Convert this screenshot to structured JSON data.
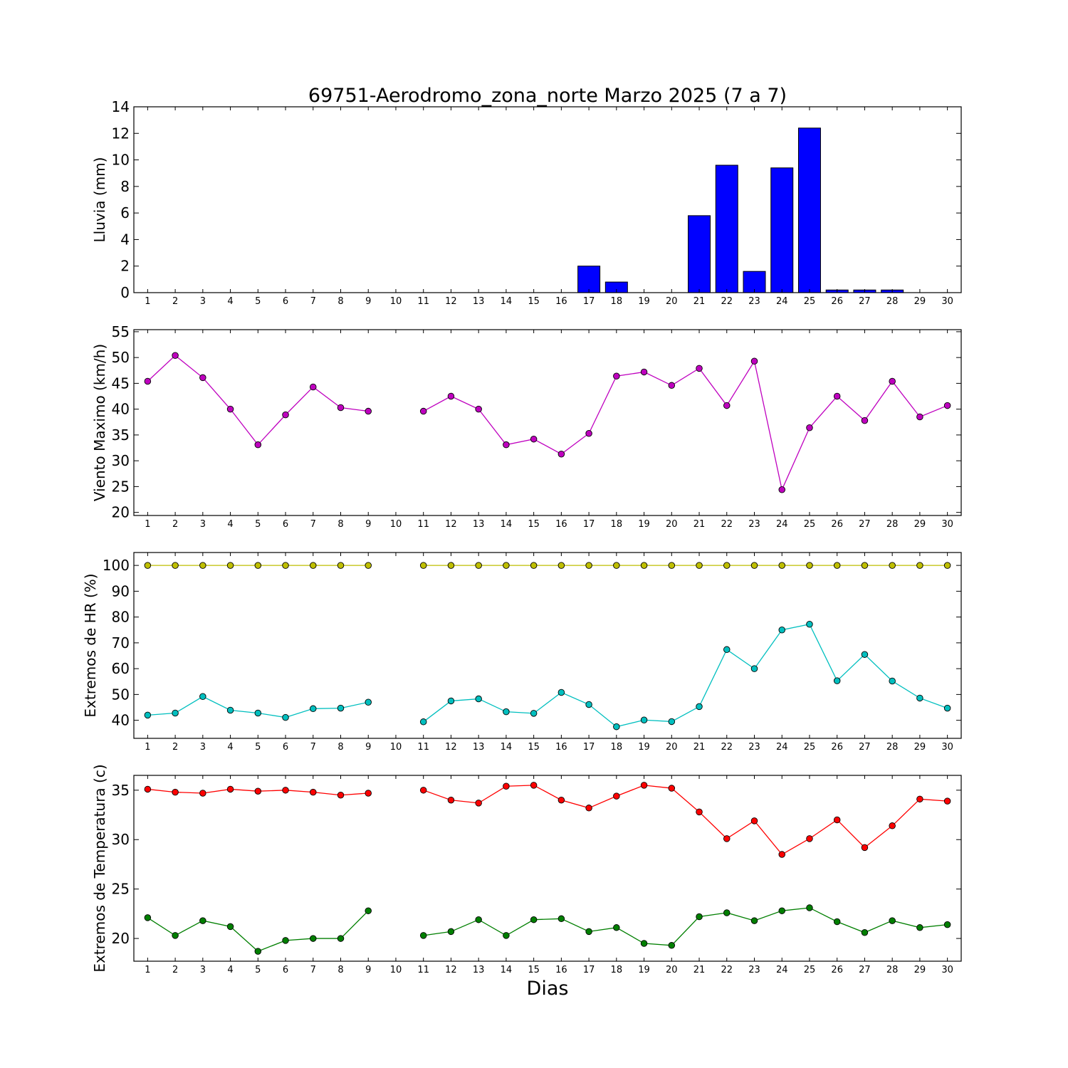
{
  "title": "69751-Aerodromo_zona_norte Marzo 2025  (7 a 7)",
  "xlabel": "Dias",
  "chart_data": [
    {
      "type": "bar",
      "ylabel": "Lluvia (mm)",
      "ylim": [
        0,
        14
      ],
      "yticks": [
        0,
        2,
        4,
        6,
        8,
        10,
        12,
        14
      ],
      "x": [
        1,
        2,
        3,
        4,
        5,
        6,
        7,
        8,
        9,
        10,
        11,
        12,
        13,
        14,
        15,
        16,
        17,
        18,
        19,
        20,
        21,
        22,
        23,
        24,
        25,
        26,
        27,
        28,
        29,
        30
      ],
      "series": [
        {
          "color": "#0000ff",
          "values": [
            0,
            0,
            0,
            0,
            0,
            0,
            0,
            0,
            0,
            null,
            0,
            0,
            0,
            0,
            0,
            0,
            2.0,
            0.8,
            0,
            0,
            5.8,
            9.6,
            1.6,
            9.4,
            12.4,
            0.2,
            0.2,
            0.2,
            0,
            0
          ]
        }
      ]
    },
    {
      "type": "line",
      "ylabel": "Viento Maximo (km/h)",
      "ylim": [
        19.4,
        55.4
      ],
      "yticks": [
        20,
        25,
        30,
        35,
        40,
        45,
        50,
        55
      ],
      "x": [
        1,
        2,
        3,
        4,
        5,
        6,
        7,
        8,
        9,
        10,
        11,
        12,
        13,
        14,
        15,
        16,
        17,
        18,
        19,
        20,
        21,
        22,
        23,
        24,
        25,
        26,
        27,
        28,
        29,
        30
      ],
      "series": [
        {
          "color": "#bf00bf",
          "values": [
            45.4,
            50.4,
            46.1,
            40.0,
            33.1,
            38.9,
            44.3,
            40.3,
            39.6,
            null,
            39.6,
            42.5,
            40.0,
            33.1,
            34.2,
            31.3,
            35.3,
            46.4,
            47.2,
            44.6,
            47.9,
            40.7,
            49.3,
            24.4,
            36.4,
            42.5,
            37.8,
            45.4,
            38.5,
            40.7
          ]
        }
      ]
    },
    {
      "type": "line",
      "ylabel": "Extremos de HR (%)",
      "ylim": [
        33,
        105
      ],
      "yticks": [
        40,
        50,
        60,
        70,
        80,
        90,
        100
      ],
      "x": [
        1,
        2,
        3,
        4,
        5,
        6,
        7,
        8,
        9,
        10,
        11,
        12,
        13,
        14,
        15,
        16,
        17,
        18,
        19,
        20,
        21,
        22,
        23,
        24,
        25,
        26,
        27,
        28,
        29,
        30
      ],
      "series": [
        {
          "color": "#bfbf00",
          "values": [
            100,
            100,
            100,
            100,
            100,
            100,
            100,
            100,
            100,
            null,
            100,
            100,
            100,
            100,
            100,
            100,
            100,
            100,
            100,
            100,
            100,
            100,
            100,
            100,
            100,
            100,
            100,
            100,
            100,
            100
          ]
        },
        {
          "color": "#00bfbf",
          "values": [
            42.0,
            42.8,
            49.2,
            43.9,
            42.8,
            41.1,
            44.5,
            44.7,
            47.0,
            null,
            39.4,
            47.5,
            48.3,
            43.3,
            42.7,
            50.8,
            46.1,
            37.5,
            40.1,
            39.5,
            45.3,
            67.4,
            60.0,
            75.0,
            77.2,
            55.3,
            65.5,
            55.2,
            48.6,
            44.7
          ]
        }
      ]
    },
    {
      "type": "line",
      "ylabel": "Extremos de Temperatura (c)",
      "ylim": [
        17.7,
        36.5
      ],
      "yticks": [
        20,
        25,
        30,
        35
      ],
      "x": [
        1,
        2,
        3,
        4,
        5,
        6,
        7,
        8,
        9,
        10,
        11,
        12,
        13,
        14,
        15,
        16,
        17,
        18,
        19,
        20,
        21,
        22,
        23,
        24,
        25,
        26,
        27,
        28,
        29,
        30
      ],
      "series": [
        {
          "color": "#ff0000",
          "values": [
            35.1,
            34.8,
            34.7,
            35.1,
            34.9,
            35.0,
            34.8,
            34.5,
            34.7,
            null,
            35.0,
            34.0,
            33.7,
            35.4,
            35.5,
            34.0,
            33.2,
            34.4,
            35.5,
            35.2,
            32.8,
            30.1,
            31.9,
            28.5,
            30.1,
            32.0,
            29.2,
            31.4,
            34.1,
            33.9
          ]
        },
        {
          "color": "#007f00",
          "values": [
            22.1,
            20.3,
            21.8,
            21.2,
            18.7,
            19.8,
            20.0,
            20.0,
            22.8,
            null,
            20.3,
            20.7,
            21.9,
            20.3,
            21.9,
            22.0,
            20.7,
            21.1,
            19.5,
            19.3,
            22.2,
            22.6,
            21.8,
            22.8,
            23.1,
            21.7,
            20.6,
            21.8,
            21.1,
            21.4
          ]
        }
      ]
    }
  ]
}
